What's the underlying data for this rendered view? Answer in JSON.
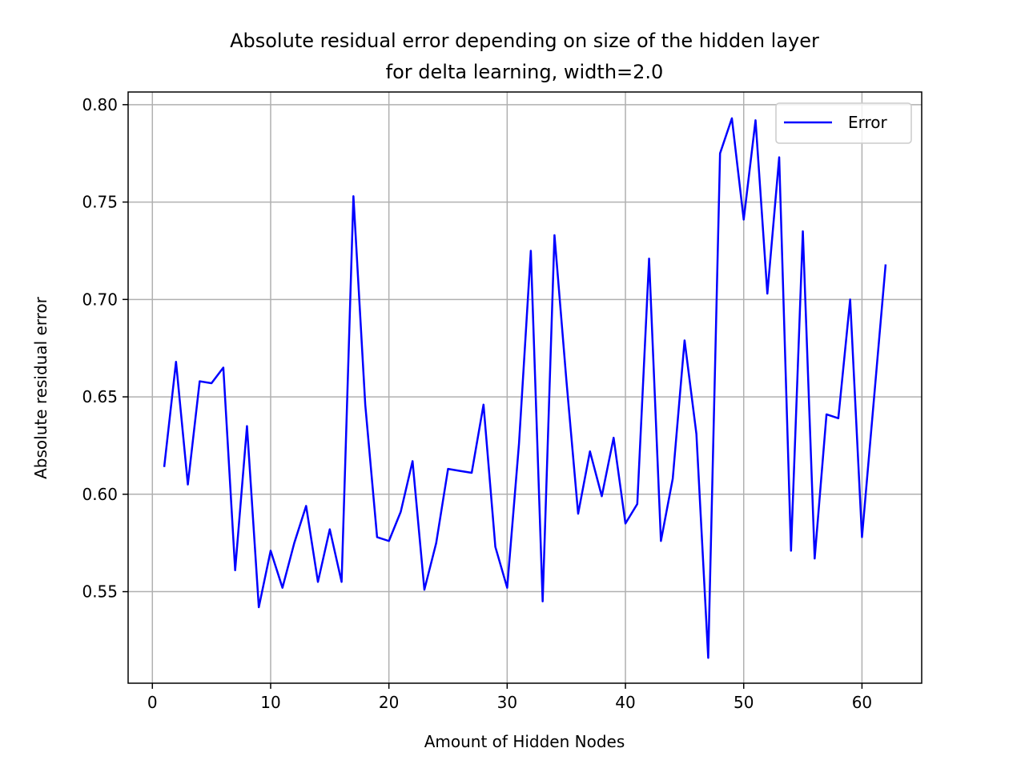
{
  "chart_data": {
    "type": "line",
    "title_line1": "Absolute residual error depending on size of the hidden layer",
    "title_line2": "for delta learning, width=2.0",
    "xlabel": "Amount of Hidden Nodes",
    "ylabel": "Absolute residual error",
    "xlim": [
      -2.05,
      65.05
    ],
    "ylim": [
      0.503,
      0.8065
    ],
    "xticks": [
      0,
      10,
      20,
      30,
      40,
      50,
      60
    ],
    "xtick_labels": [
      "0",
      "10",
      "20",
      "30",
      "40",
      "50",
      "60"
    ],
    "yticks": [
      0.55,
      0.6,
      0.65,
      0.7,
      0.75,
      0.8
    ],
    "ytick_labels": [
      "0.55",
      "0.60",
      "0.65",
      "0.70",
      "0.75",
      "0.80"
    ],
    "grid": true,
    "legend_position": "upper right",
    "series": [
      {
        "name": "Error",
        "color": "#0000ff",
        "x": [
          1,
          2,
          3,
          4,
          5,
          6,
          7,
          8,
          9,
          10,
          11,
          12,
          13,
          14,
          15,
          16,
          17,
          18,
          19,
          20,
          21,
          22,
          23,
          24,
          25,
          26,
          27,
          28,
          29,
          30,
          31,
          32,
          33,
          34,
          35,
          36,
          37,
          38,
          39,
          40,
          41,
          42,
          43,
          44,
          45,
          46,
          47,
          48,
          49,
          50,
          51,
          52,
          53,
          54,
          55,
          56,
          57,
          58,
          59,
          60,
          61,
          62
        ],
        "y": [
          0.614,
          0.668,
          0.605,
          0.658,
          0.657,
          0.665,
          0.561,
          0.635,
          0.542,
          0.571,
          0.552,
          0.575,
          0.594,
          0.555,
          0.582,
          0.555,
          0.753,
          0.646,
          0.578,
          0.576,
          0.591,
          0.617,
          0.551,
          0.575,
          0.613,
          0.612,
          0.611,
          0.646,
          0.573,
          0.552,
          0.626,
          0.725,
          0.545,
          0.733,
          0.659,
          0.59,
          0.622,
          0.599,
          0.629,
          0.585,
          0.595,
          0.721,
          0.576,
          0.608,
          0.679,
          0.631,
          0.516,
          0.775,
          0.793,
          0.741,
          0.792,
          0.703,
          0.773,
          0.571,
          0.735,
          0.567,
          0.641,
          0.639,
          0.7,
          0.578,
          0.648,
          0.718
        ]
      }
    ]
  }
}
